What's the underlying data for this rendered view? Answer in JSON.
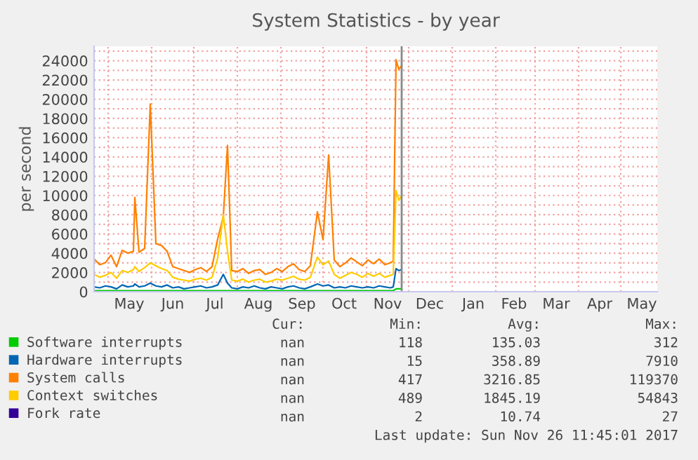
{
  "chart_data": {
    "type": "line",
    "title": "System Statistics - by year",
    "ylabel": "per second",
    "x": [
      "2017-04-21",
      "2017-04-25",
      "2017-04-29",
      "2017-05-03",
      "2017-05-07",
      "2017-05-11",
      "2017-05-15",
      "2017-05-19",
      "2017-05-20",
      "2017-05-23",
      "2017-05-27",
      "2017-05-31",
      "2017-06-04",
      "2017-06-08",
      "2017-06-12",
      "2017-06-16",
      "2017-06-20",
      "2017-06-24",
      "2017-06-28",
      "2017-07-02",
      "2017-07-06",
      "2017-07-10",
      "2017-07-14",
      "2017-07-18",
      "2017-07-22",
      "2017-07-25",
      "2017-07-28",
      "2017-08-01",
      "2017-08-05",
      "2017-08-09",
      "2017-08-13",
      "2017-08-17",
      "2017-08-21",
      "2017-08-25",
      "2017-08-29",
      "2017-09-02",
      "2017-09-06",
      "2017-09-10",
      "2017-09-14",
      "2017-09-18",
      "2017-09-22",
      "2017-09-27",
      "2017-10-01",
      "2017-10-05",
      "2017-10-09",
      "2017-10-13",
      "2017-10-17",
      "2017-10-21",
      "2017-10-25",
      "2017-10-29",
      "2017-11-02",
      "2017-11-06",
      "2017-11-10",
      "2017-11-14",
      "2017-11-18",
      "2017-11-20",
      "2017-11-22",
      "2017-11-24",
      "2017-11-26"
    ],
    "series": [
      {
        "name": "Software interrupts",
        "color": "#00cc00",
        "x": [
          "2017-04-21",
          "2017-06-01",
          "2017-08-01",
          "2017-10-01",
          "2017-11-20",
          "2017-11-22",
          "2017-11-26"
        ],
        "values": [
          100,
          100,
          100,
          100,
          100,
          300,
          300
        ]
      },
      {
        "name": "Hardware interrupts",
        "color": "#0066b3",
        "values": [
          500,
          400,
          600,
          500,
          300,
          700,
          500,
          600,
          800,
          500,
          600,
          900,
          600,
          500,
          700,
          400,
          500,
          300,
          400,
          500,
          600,
          400,
          500,
          700,
          1800,
          900,
          400,
          300,
          500,
          400,
          600,
          400,
          300,
          500,
          400,
          300,
          500,
          600,
          400,
          300,
          500,
          800,
          600,
          700,
          400,
          500,
          400,
          600,
          500,
          400,
          500,
          400,
          600,
          500,
          400,
          500,
          2400,
          2200,
          2300
        ]
      },
      {
        "name": "System calls",
        "color": "#ff8000",
        "values": [
          3400,
          2800,
          3000,
          3800,
          2600,
          4300,
          4000,
          4200,
          9800,
          4100,
          4500,
          19500,
          5000,
          4800,
          4200,
          2600,
          2400,
          2200,
          2000,
          2300,
          2500,
          2100,
          2600,
          5500,
          7800,
          15200,
          2200,
          2100,
          2400,
          1900,
          2200,
          2300,
          1800,
          2000,
          2400,
          2100,
          2600,
          2900,
          2300,
          2100,
          2700,
          8300,
          5400,
          14200,
          3300,
          2600,
          3000,
          3500,
          3100,
          2700,
          3300,
          2900,
          3400,
          2800,
          3000,
          3200,
          24100,
          23100,
          23500
        ]
      },
      {
        "name": "Context switches",
        "color": "#ffcc00",
        "values": [
          1800,
          1500,
          1700,
          2000,
          1400,
          2200,
          2000,
          2300,
          2600,
          2100,
          2500,
          3000,
          2700,
          2400,
          2200,
          1500,
          1300,
          1200,
          1100,
          1300,
          1400,
          1200,
          1500,
          3500,
          8000,
          4200,
          1200,
          1100,
          1300,
          1000,
          1200,
          1300,
          1000,
          1100,
          1300,
          1200,
          1400,
          1600,
          1300,
          1200,
          1500,
          3600,
          2800,
          3200,
          1800,
          1400,
          1700,
          2000,
          1800,
          1500,
          1900,
          1600,
          1900,
          1500,
          1700,
          1800,
          10500,
          9500,
          10000
        ]
      },
      {
        "name": "Fork rate",
        "color": "#330099",
        "values": [
          null,
          null,
          null,
          null,
          null,
          null,
          null,
          null,
          null,
          null,
          null,
          null,
          null,
          null,
          null,
          null,
          null,
          null,
          null,
          null,
          null,
          null,
          null,
          null,
          null,
          null,
          null,
          null,
          null,
          null,
          null,
          null,
          null,
          null,
          null,
          null,
          null,
          null,
          null,
          null,
          null,
          null,
          null,
          null,
          null,
          null,
          null,
          null,
          null,
          null,
          null,
          null,
          null,
          null,
          null,
          null,
          null,
          null,
          null
        ]
      }
    ],
    "xlim": [
      "2017-04-21",
      "2018-05-27"
    ],
    "xticks": [
      {
        "value": "2017-05-01",
        "label": null
      },
      {
        "value": "2017-06-01",
        "label": null
      },
      {
        "value": "2017-07-01",
        "label": null
      },
      {
        "value": "2017-08-01",
        "label": null
      },
      {
        "value": "2017-09-01",
        "label": null
      },
      {
        "value": "2017-10-01",
        "label": null
      },
      {
        "value": "2017-11-01",
        "label": null
      },
      {
        "value": "2017-12-01",
        "label": null
      },
      {
        "value": "2018-01-01",
        "label": null
      },
      {
        "value": "2018-02-01",
        "label": null
      },
      {
        "value": "2018-03-01",
        "label": null
      },
      {
        "value": "2018-04-01",
        "label": null
      },
      {
        "value": "2018-05-01",
        "label": null
      },
      {
        "value": "2017-05-16",
        "label": "May"
      },
      {
        "value": "2017-06-16",
        "label": "Jun"
      },
      {
        "value": "2017-07-16",
        "label": "Jul"
      },
      {
        "value": "2017-08-16",
        "label": "Aug"
      },
      {
        "value": "2017-09-16",
        "label": "Sep"
      },
      {
        "value": "2017-10-16",
        "label": "Oct"
      },
      {
        "value": "2017-11-16",
        "label": "Nov"
      },
      {
        "value": "2017-12-16",
        "label": "Dec"
      },
      {
        "value": "2018-01-16",
        "label": "Jan"
      },
      {
        "value": "2018-02-14",
        "label": "Feb"
      },
      {
        "value": "2018-03-16",
        "label": "Mar"
      },
      {
        "value": "2018-04-16",
        "label": "Apr"
      },
      {
        "value": "2018-05-16",
        "label": "May"
      }
    ],
    "ylim": [
      0,
      25500
    ],
    "yticks": [
      0,
      2000,
      4000,
      6000,
      8000,
      10000,
      12000,
      14000,
      16000,
      18000,
      20000,
      22000,
      24000,
      {
        "value": 1000,
        "label": null
      },
      {
        "value": 3000,
        "label": null
      },
      {
        "value": 5000,
        "label": null
      },
      {
        "value": 7000,
        "label": null
      },
      {
        "value": 9000,
        "label": null
      },
      {
        "value": 11000,
        "label": null
      },
      {
        "value": 13000,
        "label": null
      },
      {
        "value": 15000,
        "label": null
      },
      {
        "value": 17000,
        "label": null
      },
      {
        "value": 19000,
        "label": null
      },
      {
        "value": 21000,
        "label": null
      },
      {
        "value": 23000,
        "label": null
      },
      {
        "value": 25000,
        "label": null
      }
    ],
    "grid": true,
    "legend": "bottom",
    "ref_lines": [
      {
        "axis": "x",
        "value": "2017-11-26",
        "label": null,
        "color": "#888888"
      }
    ],
    "annotations": [
      "Cur:",
      "Min:",
      "Avg:",
      "Max:",
      "nan",
      "118",
      "135.03",
      "312",
      "nan",
      "15",
      "358.89",
      "7910",
      "nan",
      "417",
      "3216.85",
      "119370",
      "nan",
      "489",
      "1845.19",
      "54843",
      "nan",
      "2",
      "10.74",
      "27",
      "Last update: Sun Nov 26 11:45:01 2017"
    ]
  }
}
